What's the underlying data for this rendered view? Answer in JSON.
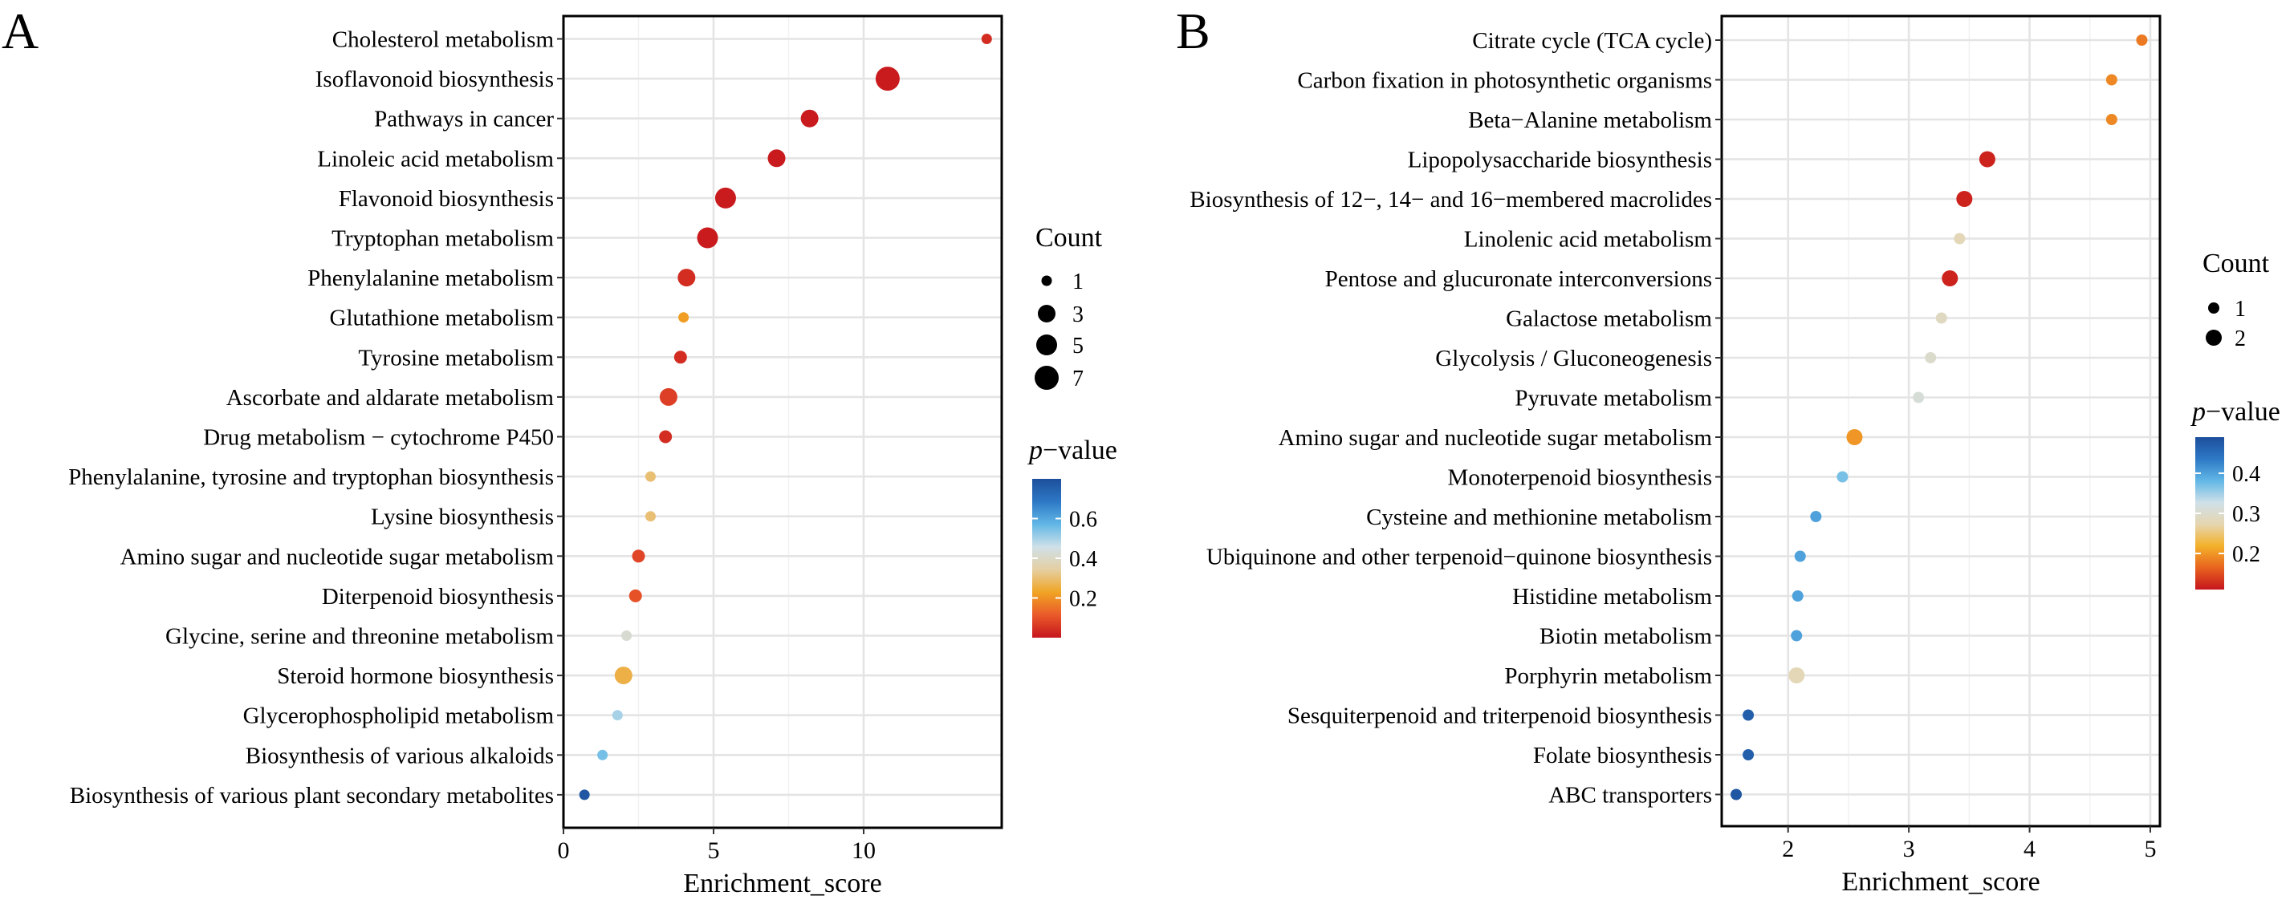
{
  "chart_data": [
    {
      "panel": "A",
      "type": "scatter",
      "xlabel": "Enrichment_score",
      "xlim": [
        0,
        14.6
      ],
      "xticks": [
        0,
        5,
        10
      ],
      "grid": true,
      "categories": [
        "Cholesterol metabolism",
        "Isoflavonoid biosynthesis",
        "Pathways in cancer",
        "Linoleic acid metabolism",
        "Flavonoid biosynthesis",
        "Tryptophan metabolism",
        "Phenylalanine metabolism",
        "Glutathione metabolism",
        "Tyrosine metabolism",
        "Ascorbate and aldarate metabolism",
        "Drug metabolism − cytochrome P450",
        "Phenylalanine, tyrosine and tryptophan biosynthesis",
        "Lysine biosynthesis",
        "Amino sugar and nucleotide sugar metabolism",
        "Diterpenoid biosynthesis",
        "Glycine, serine and threonine metabolism",
        "Steroid hormone biosynthesis",
        "Glycerophospholipid metabolism",
        "Biosynthesis of various alkaloids",
        "Biosynthesis of various plant secondary metabolites"
      ],
      "points": [
        {
          "x": 14.1,
          "count": 1,
          "pvalue": 0.04
        },
        {
          "x": 10.8,
          "count": 7,
          "pvalue": 0.01
        },
        {
          "x": 8.2,
          "count": 3,
          "pvalue": 0.01
        },
        {
          "x": 7.1,
          "count": 3,
          "pvalue": 0.01
        },
        {
          "x": 5.4,
          "count": 5,
          "pvalue": 0.01
        },
        {
          "x": 4.8,
          "count": 5,
          "pvalue": 0.01
        },
        {
          "x": 4.1,
          "count": 3,
          "pvalue": 0.04
        },
        {
          "x": 4.0,
          "count": 1,
          "pvalue": 0.22
        },
        {
          "x": 3.9,
          "count": 4,
          "pvalue": 0.04
        },
        {
          "x": 3.5,
          "count": 3,
          "pvalue": 0.07
        },
        {
          "x": 3.4,
          "count": 4,
          "pvalue": 0.04
        },
        {
          "x": 2.9,
          "count": 1,
          "pvalue": 0.3
        },
        {
          "x": 2.9,
          "count": 1,
          "pvalue": 0.3
        },
        {
          "x": 2.5,
          "count": 4,
          "pvalue": 0.08
        },
        {
          "x": 2.4,
          "count": 4,
          "pvalue": 0.1
        },
        {
          "x": 2.1,
          "count": 1,
          "pvalue": 0.42
        },
        {
          "x": 2.0,
          "count": 3,
          "pvalue": 0.26
        },
        {
          "x": 1.8,
          "count": 1,
          "pvalue": 0.5
        },
        {
          "x": 1.3,
          "count": 1,
          "pvalue": 0.55
        },
        {
          "x": 0.7,
          "count": 1,
          "pvalue": 0.78
        }
      ],
      "size_legend": {
        "title": "Count",
        "values": [
          1,
          3,
          5,
          7
        ]
      },
      "color_legend": {
        "title_italic": "p",
        "title_rest": "−value",
        "ticks": [
          0.6,
          0.4,
          0.2
        ],
        "range": [
          0,
          0.8
        ],
        "colors": [
          "#c6151d",
          "#ea5a2a",
          "#f0a424",
          "#e5cfa2",
          "#cfe0e8",
          "#61b7e6",
          "#2d78c5",
          "#1d4f9b"
        ]
      },
      "legend_position": "right"
    },
    {
      "panel": "B",
      "type": "scatter",
      "xlabel": "Enrichment_score",
      "xlim": [
        1.45,
        5.08
      ],
      "xticks": [
        2,
        3,
        4,
        5
      ],
      "grid": true,
      "categories": [
        "Citrate cycle (TCA cycle)",
        "Carbon fixation in photosynthetic organisms",
        "Beta−Alanine metabolism",
        "Lipopolysaccharide biosynthesis",
        "Biosynthesis of 12−, 14− and 16−membered macrolides",
        "Linolenic acid metabolism",
        "Pentose and glucuronate interconversions",
        "Galactose metabolism",
        "Glycolysis / Gluconeogenesis",
        "Pyruvate metabolism",
        "Amino sugar and nucleotide sugar metabolism",
        "Monoterpenoid biosynthesis",
        "Cysteine and methionine metabolism",
        "Ubiquinone and other terpenoid−quinone biosynthesis",
        "Histidine metabolism",
        "Biotin metabolism",
        "Porphyrin metabolism",
        "Sesquiterpenoid and triterpenoid biosynthesis",
        "Folate biosynthesis",
        "ABC transporters"
      ],
      "points": [
        {
          "x": 4.93,
          "count": 1,
          "pvalue": 0.18
        },
        {
          "x": 4.68,
          "count": 1,
          "pvalue": 0.19
        },
        {
          "x": 4.68,
          "count": 1,
          "pvalue": 0.19
        },
        {
          "x": 3.65,
          "count": 2,
          "pvalue": 0.12
        },
        {
          "x": 3.46,
          "count": 2,
          "pvalue": 0.12
        },
        {
          "x": 3.42,
          "count": 1,
          "pvalue": 0.28
        },
        {
          "x": 3.34,
          "count": 2,
          "pvalue": 0.12
        },
        {
          "x": 3.27,
          "count": 1,
          "pvalue": 0.29
        },
        {
          "x": 3.18,
          "count": 1,
          "pvalue": 0.3
        },
        {
          "x": 3.08,
          "count": 1,
          "pvalue": 0.31
        },
        {
          "x": 2.55,
          "count": 2,
          "pvalue": 0.2
        },
        {
          "x": 2.45,
          "count": 1,
          "pvalue": 0.37
        },
        {
          "x": 2.23,
          "count": 1,
          "pvalue": 0.4
        },
        {
          "x": 2.1,
          "count": 1,
          "pvalue": 0.4
        },
        {
          "x": 2.08,
          "count": 1,
          "pvalue": 0.4
        },
        {
          "x": 2.07,
          "count": 1,
          "pvalue": 0.4
        },
        {
          "x": 2.07,
          "count": 2,
          "pvalue": 0.28
        },
        {
          "x": 1.67,
          "count": 1,
          "pvalue": 0.47
        },
        {
          "x": 1.67,
          "count": 1,
          "pvalue": 0.47
        },
        {
          "x": 1.57,
          "count": 1,
          "pvalue": 0.48
        }
      ],
      "size_legend": {
        "title": "Count",
        "values": [
          1,
          2
        ]
      },
      "color_legend": {
        "title_italic": "p",
        "title_rest": "−value",
        "ticks": [
          0.4,
          0.3,
          0.2
        ],
        "range": [
          0.11,
          0.49
        ],
        "colors": [
          "#c6151d",
          "#e8631f",
          "#f3b12a",
          "#e6d6b0",
          "#cfe0e8",
          "#61b7e6",
          "#2d78c5",
          "#1d4f9b"
        ]
      },
      "legend_position": "right"
    }
  ]
}
